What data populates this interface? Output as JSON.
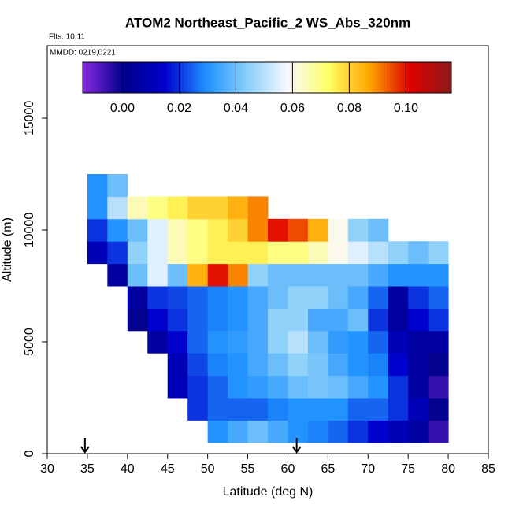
{
  "chart_data": {
    "type": "heatmap",
    "title": "ATOM2 Northeast_Pacific_2 WS_Abs_320nm",
    "flights_label": "Flts: 10,11",
    "dates_label": "MMDD: 0219,0221",
    "x_label": "Latitude (deg N)",
    "y_label": "Altitude (m)",
    "xlim": [
      30,
      85
    ],
    "ylim": [
      0,
      18240
    ],
    "xticks": [
      30,
      35,
      40,
      45,
      50,
      55,
      60,
      65,
      70,
      75,
      80,
      85
    ],
    "yticks": [
      0,
      5000,
      10000,
      15000
    ],
    "x": [
      36.25,
      38.75,
      41.25,
      43.75,
      46.25,
      48.75,
      51.25,
      53.75,
      56.25,
      58.75,
      61.25,
      63.75,
      66.25,
      68.75,
      71.25,
      73.75,
      76.25,
      78.75
    ],
    "y": [
      1000,
      2000,
      3000,
      4000,
      5000,
      6000,
      7000,
      8000,
      9000,
      10000,
      11000,
      12000
    ],
    "values": [
      [
        null,
        null,
        null,
        null,
        null,
        null,
        0.03,
        0.035,
        0.04,
        0.035,
        0.03,
        0.028,
        0.025,
        0.02,
        0.015,
        0.01,
        0.005,
        -0.005
      ],
      [
        null,
        null,
        null,
        null,
        null,
        0.02,
        0.025,
        0.025,
        0.025,
        0.028,
        0.03,
        0.03,
        0.03,
        0.025,
        0.025,
        0.02,
        0.01,
        0.0
      ],
      [
        null,
        null,
        null,
        null,
        0.01,
        0.02,
        0.025,
        0.03,
        0.032,
        0.035,
        0.04,
        0.042,
        0.04,
        0.035,
        0.03,
        0.02,
        0.005,
        -0.005
      ],
      [
        null,
        null,
        null,
        null,
        0.01,
        0.022,
        0.028,
        0.03,
        0.035,
        0.04,
        0.045,
        0.042,
        0.035,
        0.03,
        0.028,
        0.015,
        0.005,
        0.0
      ],
      [
        null,
        null,
        null,
        0.005,
        0.015,
        0.025,
        0.03,
        0.032,
        0.035,
        0.045,
        0.05,
        0.04,
        0.032,
        0.03,
        0.025,
        0.01,
        0.005,
        0.005
      ],
      [
        null,
        null,
        0.0,
        0.015,
        0.02,
        0.025,
        0.028,
        0.03,
        0.035,
        0.045,
        0.045,
        0.035,
        0.035,
        0.04,
        0.02,
        0.005,
        0.015,
        0.02
      ],
      [
        null,
        null,
        0.005,
        0.02,
        0.022,
        0.025,
        0.028,
        0.03,
        0.035,
        0.04,
        0.045,
        0.045,
        0.04,
        0.035,
        0.025,
        0.005,
        0.02,
        0.025
      ],
      [
        null,
        0.005,
        0.04,
        0.055,
        0.04,
        0.085,
        0.1,
        0.09,
        0.045,
        0.04,
        0.04,
        0.04,
        0.04,
        0.04,
        0.035,
        0.03,
        0.03,
        0.03
      ],
      [
        0.01,
        0.02,
        0.045,
        0.055,
        0.065,
        0.07,
        0.075,
        0.075,
        0.075,
        0.07,
        0.07,
        0.065,
        0.06,
        0.055,
        0.05,
        0.045,
        0.04,
        0.045
      ],
      [
        0.02,
        0.03,
        0.04,
        0.055,
        0.065,
        0.07,
        0.075,
        0.08,
        0.09,
        0.1,
        0.095,
        0.085,
        0.06,
        0.045,
        0.04,
        null,
        null,
        null
      ],
      [
        0.03,
        0.05,
        0.065,
        0.07,
        0.075,
        0.08,
        0.08,
        0.085,
        0.09,
        null,
        null,
        null,
        null,
        null,
        null,
        null,
        null,
        null
      ],
      [
        0.03,
        0.04,
        null,
        null,
        null,
        null,
        null,
        null,
        null,
        null,
        null,
        null,
        null,
        null,
        null,
        null,
        null,
        null
      ]
    ],
    "markers": [
      34.7,
      61.1
    ],
    "colorbar": {
      "lim": [
        -0.014,
        0.116
      ],
      "ticks": [
        {
          "value": 0,
          "label": "0.00"
        },
        {
          "value": 0.02,
          "label": "0.02"
        },
        {
          "value": 0.04,
          "label": "0.04"
        },
        {
          "value": 0.06,
          "label": "0.06"
        },
        {
          "value": 0.08,
          "label": "0.08"
        },
        {
          "value": 0.1,
          "label": "0.10"
        }
      ],
      "colors": [
        "#8a2be2",
        "#00008b",
        "#0000cd",
        "#1e90ff",
        "#87cefa",
        "#f8f8ff",
        "#ffff66",
        "#ffa500",
        "#e00000",
        "#8b1a1a"
      ]
    }
  }
}
